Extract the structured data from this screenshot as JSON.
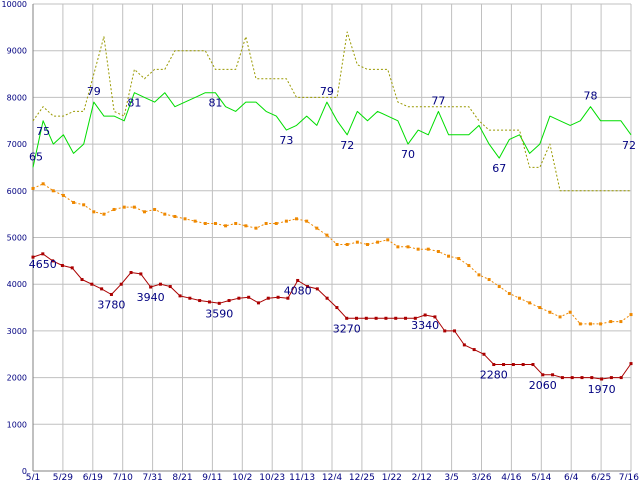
{
  "chart_data": {
    "type": "line",
    "title": "",
    "xlabel": "",
    "ylabel": "",
    "ylim": [
      0,
      10000
    ],
    "y_ticks": [
      0,
      1000,
      2000,
      3000,
      4000,
      5000,
      6000,
      7000,
      8000,
      9000,
      10000
    ],
    "x_tick_labels": [
      "5/1",
      "5/29",
      "6/19",
      "7/10",
      "7/31",
      "8/21",
      "9/11",
      "10/2",
      "10/23",
      "11/13",
      "12/4",
      "12/25",
      "1/22",
      "2/12",
      "3/5",
      "3/26",
      "4/16",
      "5/14",
      "6/4",
      "6/25",
      "7/16"
    ],
    "grid": true,
    "legend": "none",
    "colors": {
      "green": "#00dd00",
      "olive": "#999900",
      "orange": "#ee8800",
      "darkred": "#aa0000",
      "grid": "#c0c0c0",
      "label": "#000080"
    },
    "series": [
      {
        "key": "green",
        "style": "solid",
        "markers": false,
        "values": [
          6500,
          7500,
          7000,
          7200,
          6800,
          7000,
          7900,
          7600,
          7600,
          7500,
          8100,
          8000,
          7900,
          8100,
          7800,
          7900,
          8000,
          8100,
          8100,
          7800,
          7700,
          7900,
          7900,
          7700,
          7600,
          7300,
          7400,
          7600,
          7400,
          7900,
          7500,
          7200,
          7700,
          7500,
          7700,
          7600,
          7500,
          7000,
          7300,
          7200,
          7700,
          7200,
          7200,
          7200,
          7400,
          7000,
          6700,
          7100,
          7200,
          6800,
          7000,
          7600,
          7500,
          7400,
          7500,
          7800,
          7500,
          7500,
          7500,
          7200
        ],
        "labels": [
          {
            "i": 0,
            "text": "65",
            "pos": "above"
          },
          {
            "i": 1,
            "text": "75",
            "pos": "below"
          },
          {
            "i": 6,
            "text": "79",
            "pos": "above"
          },
          {
            "i": 10,
            "text": "81",
            "pos": "below"
          },
          {
            "i": 18,
            "text": "81",
            "pos": "below"
          },
          {
            "i": 25,
            "text": "73",
            "pos": "below"
          },
          {
            "i": 29,
            "text": "79",
            "pos": "above"
          },
          {
            "i": 31,
            "text": "72",
            "pos": "below"
          },
          {
            "i": 37,
            "text": "70",
            "pos": "below"
          },
          {
            "i": 40,
            "text": "77",
            "pos": "above"
          },
          {
            "i": 46,
            "text": "67",
            "pos": "below"
          },
          {
            "i": 55,
            "text": "78",
            "pos": "above"
          },
          {
            "i": 59,
            "text": "72",
            "pos": "below"
          }
        ]
      },
      {
        "key": "olive",
        "style": "dotted",
        "markers": false,
        "values": [
          7500,
          7800,
          7600,
          7600,
          7700,
          7700,
          8500,
          9300,
          7700,
          7600,
          8600,
          8400,
          8600,
          8600,
          9000,
          9000,
          9000,
          9000,
          8600,
          8600,
          8600,
          9300,
          8400,
          8400,
          8400,
          8400,
          8000,
          8000,
          8000,
          8000,
          8000,
          9400,
          8700,
          8600,
          8600,
          8600,
          7900,
          7800,
          7800,
          7800,
          7800,
          7800,
          7800,
          7800,
          7500,
          7300,
          7300,
          7300,
          7300,
          6500,
          6500,
          7000,
          6000,
          6000,
          6000,
          6000,
          6000,
          6000,
          6000,
          6000
        ],
        "labels": []
      },
      {
        "key": "orange",
        "style": "dotted",
        "markers": true,
        "values": [
          6050,
          6150,
          6000,
          5900,
          5750,
          5700,
          5550,
          5500,
          5600,
          5650,
          5650,
          5550,
          5600,
          5500,
          5450,
          5400,
          5350,
          5300,
          5300,
          5250,
          5300,
          5250,
          5200,
          5300,
          5300,
          5350,
          5400,
          5350,
          5200,
          5050,
          4850,
          4850,
          4900,
          4850,
          4900,
          4950,
          4800,
          4800,
          4750,
          4750,
          4700,
          4600,
          4550,
          4400,
          4200,
          4100,
          3950,
          3800,
          3700,
          3600,
          3500,
          3400,
          3300,
          3400,
          3150,
          3150,
          3150,
          3200,
          3200,
          3350
        ],
        "labels": []
      },
      {
        "key": "darkred",
        "style": "solid",
        "markers": true,
        "values": [
          4580,
          4650,
          4500,
          4400,
          4350,
          4100,
          4000,
          3900,
          3780,
          4000,
          4250,
          4220,
          3940,
          4000,
          3950,
          3750,
          3700,
          3650,
          3620,
          3590,
          3650,
          3700,
          3720,
          3600,
          3700,
          3720,
          3700,
          4080,
          3950,
          3900,
          3700,
          3500,
          3270,
          3270,
          3270,
          3270,
          3270,
          3270,
          3270,
          3270,
          3340,
          3300,
          3000,
          3000,
          2700,
          2600,
          2500,
          2280,
          2280,
          2280,
          2280,
          2280,
          2060,
          2060,
          2000,
          2000,
          2000,
          2000,
          1970,
          2000,
          2000,
          2300
        ],
        "labels": [
          {
            "i": 1,
            "text": "4650",
            "pos": "below"
          },
          {
            "i": 8,
            "text": "3780",
            "pos": "below"
          },
          {
            "i": 12,
            "text": "3940",
            "pos": "below"
          },
          {
            "i": 19,
            "text": "3590",
            "pos": "below"
          },
          {
            "i": 27,
            "text": "4080",
            "pos": "below"
          },
          {
            "i": 32,
            "text": "3270",
            "pos": "below"
          },
          {
            "i": 40,
            "text": "3340",
            "pos": "below"
          },
          {
            "i": 47,
            "text": "2280",
            "pos": "below"
          },
          {
            "i": 52,
            "text": "2060",
            "pos": "below"
          },
          {
            "i": 58,
            "text": "1970",
            "pos": "below"
          }
        ]
      }
    ]
  }
}
